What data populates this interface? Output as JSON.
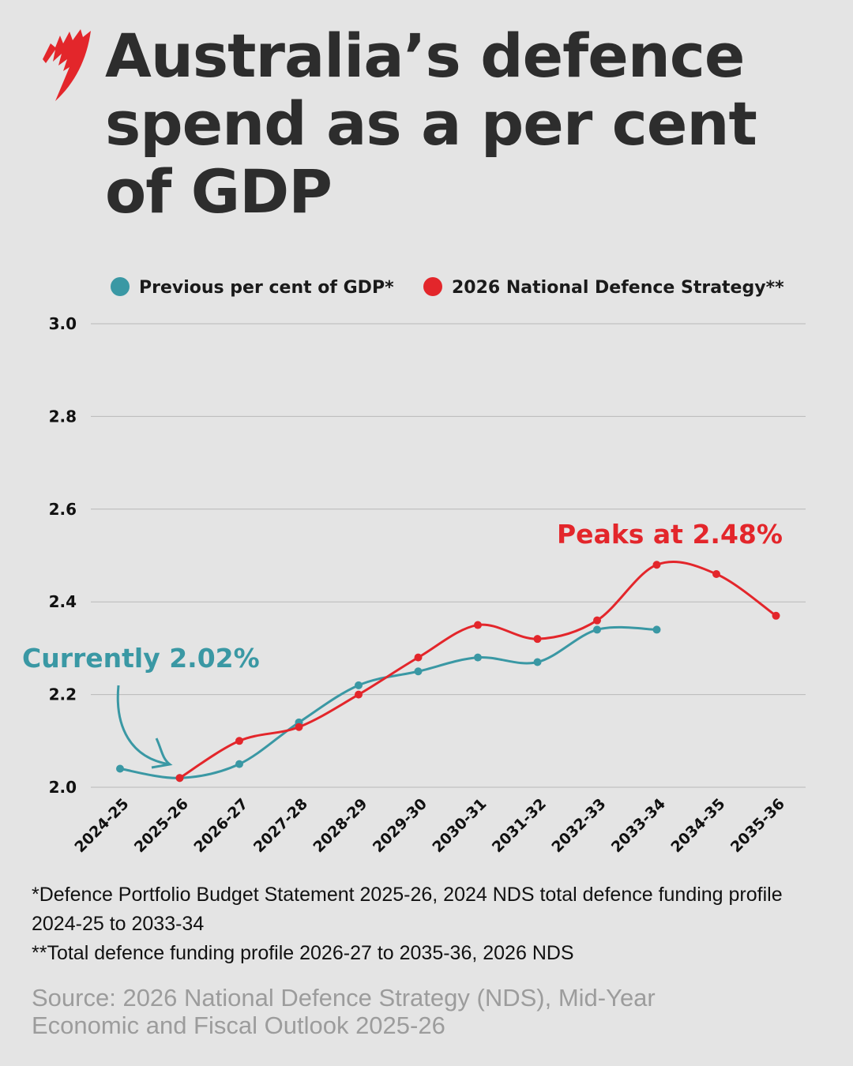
{
  "title": "Australia’s defence spend as a per cent of GDP",
  "chart_data": {
    "type": "line",
    "categories": [
      "2024-25",
      "2025-26",
      "2026-27",
      "2027-28",
      "2028-29",
      "2029-30",
      "2030-31",
      "2031-32",
      "2032-33",
      "2033-34",
      "2034-35",
      "2035-36"
    ],
    "series": [
      {
        "name": "Previous per cent of GDP*",
        "color": "#3a98a4",
        "values": [
          2.04,
          2.02,
          2.05,
          2.14,
          2.22,
          2.25,
          2.28,
          2.27,
          2.34,
          2.34,
          null,
          null
        ]
      },
      {
        "name": "2026 National Defence Strategy**",
        "color": "#e3262b",
        "values": [
          null,
          2.02,
          2.1,
          2.13,
          2.2,
          2.28,
          2.35,
          2.32,
          2.36,
          2.48,
          2.46,
          2.37
        ]
      }
    ],
    "ylim": [
      2.0,
      3.0
    ],
    "yticks": [
      "2.0",
      "2.2",
      "2.4",
      "2.6",
      "2.8",
      "3.0"
    ],
    "grid": true,
    "legend_position": "top",
    "annotations": [
      {
        "text": "Currently 2.02%",
        "color": "#3a98a4"
      },
      {
        "text": "Peaks at 2.48%",
        "color": "#e3262b"
      }
    ]
  },
  "footnotes": [
    "*Defence Portfolio Budget Statement 2025-26, 2024 NDS total defence funding profile 2024-25 to 2033-34",
    "**Total defence funding profile 2026-27 to 2035-36, 2026 NDS"
  ],
  "source": "Source: 2026 National Defence Strategy (NDS), Mid-Year Economic and Fiscal Outlook 2025-26"
}
